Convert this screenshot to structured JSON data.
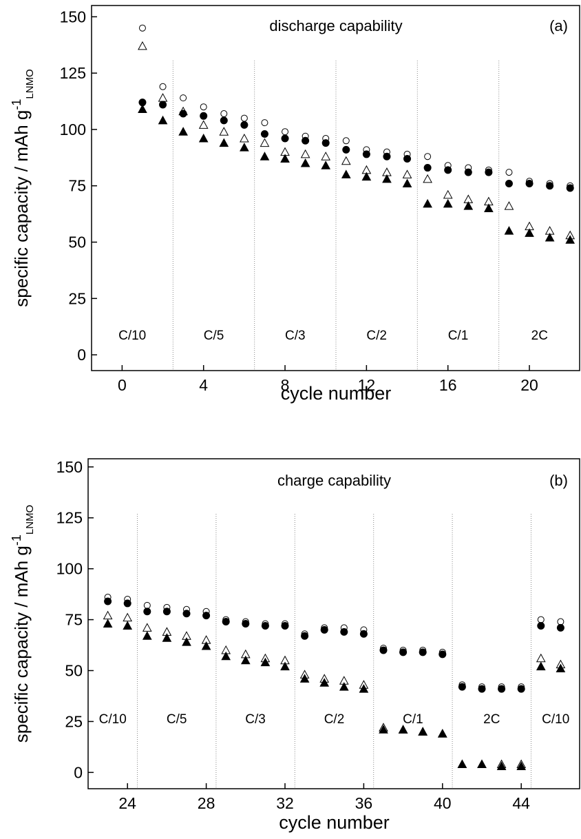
{
  "chart_data": [
    {
      "type": "scatter",
      "title": "discharge capability",
      "panel_label": "(a)",
      "xlabel": "cycle number",
      "ylabel": "specific capacity / mAh g",
      "ylabel_sup": "-1",
      "ylabel_sub": "LNMO",
      "x": [
        1,
        2,
        3,
        4,
        5,
        6,
        7,
        8,
        9,
        10,
        11,
        12,
        13,
        14,
        15,
        16,
        17,
        18,
        19,
        20,
        21,
        22
      ],
      "series": [
        {
          "marker": "circle-open",
          "color": "#000000",
          "values": [
            145,
            119,
            114,
            110,
            107,
            105,
            103,
            99,
            97,
            96,
            95,
            91,
            90,
            89,
            88,
            84,
            83,
            82,
            81,
            77,
            76,
            75
          ]
        },
        {
          "marker": "circle-filled",
          "color": "#000000",
          "values": [
            112,
            111,
            107,
            106,
            104,
            102,
            98,
            96,
            95,
            94,
            91,
            89,
            88,
            87,
            83,
            82,
            81,
            81,
            76,
            76,
            75,
            74
          ]
        },
        {
          "marker": "triangle-open",
          "color": "#000000",
          "values": [
            137,
            114,
            108,
            102,
            99,
            96,
            94,
            90,
            89,
            88,
            86,
            82,
            81,
            80,
            78,
            71,
            69,
            68,
            66,
            57,
            55,
            53
          ]
        },
        {
          "marker": "triangle-filled",
          "color": "#000000",
          "values": [
            109,
            104,
            99,
            96,
            94,
            92,
            88,
            87,
            85,
            84,
            80,
            79,
            78,
            76,
            67,
            67,
            66,
            65,
            55,
            54,
            52,
            51
          ]
        }
      ],
      "xlim": [
        -1.5,
        22.5
      ],
      "xticks": [
        0,
        4,
        8,
        12,
        16,
        20
      ],
      "ylim": [
        -7,
        155
      ],
      "yticks": [
        0,
        25,
        50,
        75,
        100,
        125,
        150
      ],
      "dividers": [
        2.5,
        6.5,
        10.5,
        14.5,
        18.5
      ],
      "rate_labels": [
        "C/10",
        "C/5",
        "C/3",
        "C/2",
        "C/1",
        "2C"
      ]
    },
    {
      "type": "scatter",
      "title": "charge capability",
      "panel_label": "(b)",
      "xlabel": "cycle number",
      "ylabel": "specific capacity / mAh g",
      "ylabel_sup": "-1",
      "ylabel_sub": "LNMO",
      "x": [
        23,
        24,
        25,
        26,
        27,
        28,
        29,
        30,
        31,
        32,
        33,
        34,
        35,
        36,
        37,
        38,
        39,
        40,
        41,
        42,
        43,
        44,
        45,
        46
      ],
      "series": [
        {
          "marker": "circle-open",
          "color": "#000000",
          "values": [
            86,
            85,
            82,
            81,
            80,
            79,
            75,
            74,
            73,
            73,
            68,
            71,
            71,
            70,
            61,
            60,
            60,
            59,
            43,
            42,
            42,
            42,
            75,
            74
          ]
        },
        {
          "marker": "circle-filled",
          "color": "#000000",
          "values": [
            84,
            83,
            79,
            79,
            78,
            77,
            74,
            73,
            72,
            72,
            67,
            70,
            69,
            68,
            60,
            59,
            59,
            58,
            42,
            41,
            41,
            41,
            72,
            71
          ]
        },
        {
          "marker": "triangle-open",
          "color": "#000000",
          "values": [
            77,
            76,
            71,
            69,
            67,
            65,
            60,
            58,
            56,
            55,
            48,
            46,
            45,
            43,
            22,
            21,
            20,
            19,
            4,
            4,
            4,
            4,
            56,
            53
          ]
        },
        {
          "marker": "triangle-filled",
          "color": "#000000",
          "values": [
            73,
            72,
            67,
            66,
            64,
            62,
            57,
            55,
            54,
            52,
            46,
            44,
            42,
            41,
            21,
            21,
            20,
            19,
            4,
            4,
            3,
            3,
            52,
            51
          ]
        }
      ],
      "xlim": [
        22,
        47
      ],
      "xticks": [
        24,
        28,
        32,
        36,
        40,
        44
      ],
      "ylim": [
        -8,
        154
      ],
      "yticks": [
        0,
        25,
        50,
        75,
        100,
        125,
        150
      ],
      "dividers": [
        24.5,
        28.5,
        32.5,
        36.5,
        40.5,
        44.5
      ],
      "rate_labels": [
        "C/10",
        "C/5",
        "C/3",
        "C/2",
        "C/1",
        "2C",
        "C/10"
      ]
    }
  ]
}
